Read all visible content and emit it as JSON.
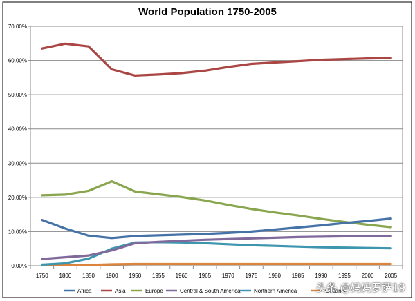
{
  "chart_data": {
    "type": "line",
    "title": "World Population 1750-2005",
    "xlabel": "",
    "ylabel": "",
    "ylim": [
      0,
      70
    ],
    "y_ticks": [
      0,
      10,
      20,
      30,
      40,
      50,
      60,
      70
    ],
    "y_tick_labels": [
      "0.00%",
      "10.00%",
      "20.00%",
      "30.00%",
      "40.00%",
      "50.00%",
      "60.00%",
      "70.00%"
    ],
    "categories": [
      "1750",
      "1800",
      "1850",
      "1900",
      "1950",
      "1955",
      "1960",
      "1965",
      "1970",
      "1975",
      "1980",
      "1985",
      "1990",
      "1995",
      "2000",
      "2005"
    ],
    "grid": true,
    "legend_position": "bottom",
    "series": [
      {
        "name": "Africa",
        "color": "#4572A7",
        "values": [
          13.4,
          10.9,
          8.8,
          8.1,
          8.7,
          8.9,
          9.1,
          9.3,
          9.6,
          10.0,
          10.6,
          11.2,
          11.8,
          12.5,
          13.1,
          13.8
        ]
      },
      {
        "name": "Asia",
        "color": "#AA4643",
        "values": [
          63.5,
          64.9,
          64.1,
          57.4,
          55.6,
          55.9,
          56.3,
          57.0,
          58.1,
          59.0,
          59.4,
          59.8,
          60.2,
          60.4,
          60.6,
          60.7
        ]
      },
      {
        "name": "Europe",
        "color": "#89A54E",
        "values": [
          20.6,
          20.8,
          21.9,
          24.7,
          21.7,
          20.9,
          20.1,
          19.1,
          17.8,
          16.6,
          15.6,
          14.7,
          13.7,
          12.8,
          12.0,
          11.3
        ]
      },
      {
        "name": "Central & South America",
        "color": "#80699B",
        "values": [
          2.0,
          2.5,
          3.0,
          4.5,
          6.6,
          7.0,
          7.3,
          7.6,
          7.8,
          8.0,
          8.2,
          8.4,
          8.5,
          8.6,
          8.7,
          8.7
        ]
      },
      {
        "name": "Northern America",
        "color": "#3D96AE",
        "values": [
          0.3,
          0.7,
          2.1,
          5.0,
          6.8,
          6.9,
          6.8,
          6.6,
          6.3,
          6.0,
          5.8,
          5.6,
          5.4,
          5.3,
          5.2,
          5.1
        ]
      },
      {
        "name": "Oceania",
        "color": "#DB843D",
        "values": [
          0.3,
          0.2,
          0.2,
          0.4,
          0.5,
          0.5,
          0.5,
          0.5,
          0.5,
          0.5,
          0.5,
          0.5,
          0.5,
          0.5,
          0.5,
          0.5
        ]
      }
    ]
  },
  "watermark": "头条 @妈妈罗萨19"
}
